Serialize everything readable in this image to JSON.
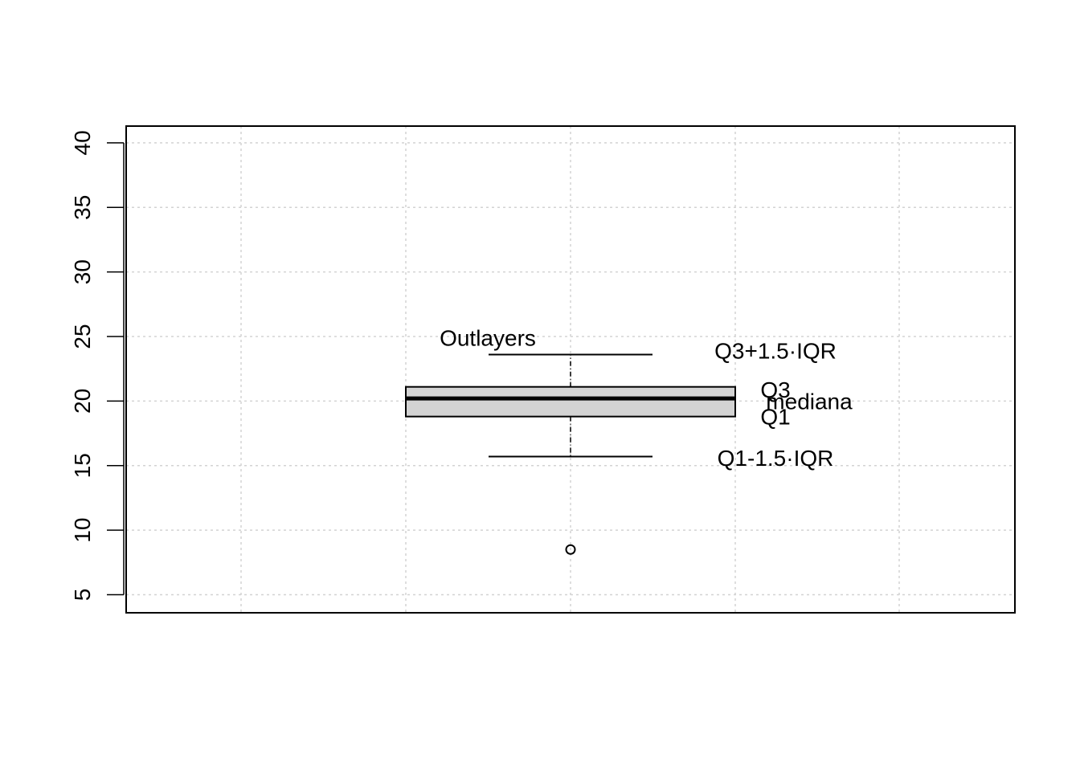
{
  "chart_data": {
    "type": "boxplot",
    "title": "",
    "xlabel": "",
    "ylabel": "",
    "ylim": [
      3.6,
      41.3
    ],
    "yticks": [
      5,
      10,
      15,
      20,
      25,
      30,
      35,
      40
    ],
    "ytick_labels": [
      "5",
      "10",
      "15",
      "20",
      "25",
      "30",
      "35",
      "40"
    ],
    "grid": true,
    "box": {
      "lower_whisker": 15.7,
      "q1": 18.8,
      "median": 20.2,
      "q3": 21.1,
      "upper_whisker": 23.6,
      "outliers": [
        8.5
      ],
      "fill_color": "#d3d3d3"
    },
    "annotations": [
      {
        "text": "Outlayers",
        "y": 24.9
      },
      {
        "text": "Q3+1.5·IQR",
        "y": 23.9
      },
      {
        "text": "Q3",
        "y": 20.9
      },
      {
        "text": "mediana",
        "y": 20.0
      },
      {
        "text": "Q1",
        "y": 18.8
      },
      {
        "text": "Q1-1.5·IQR",
        "y": 15.6
      }
    ]
  }
}
